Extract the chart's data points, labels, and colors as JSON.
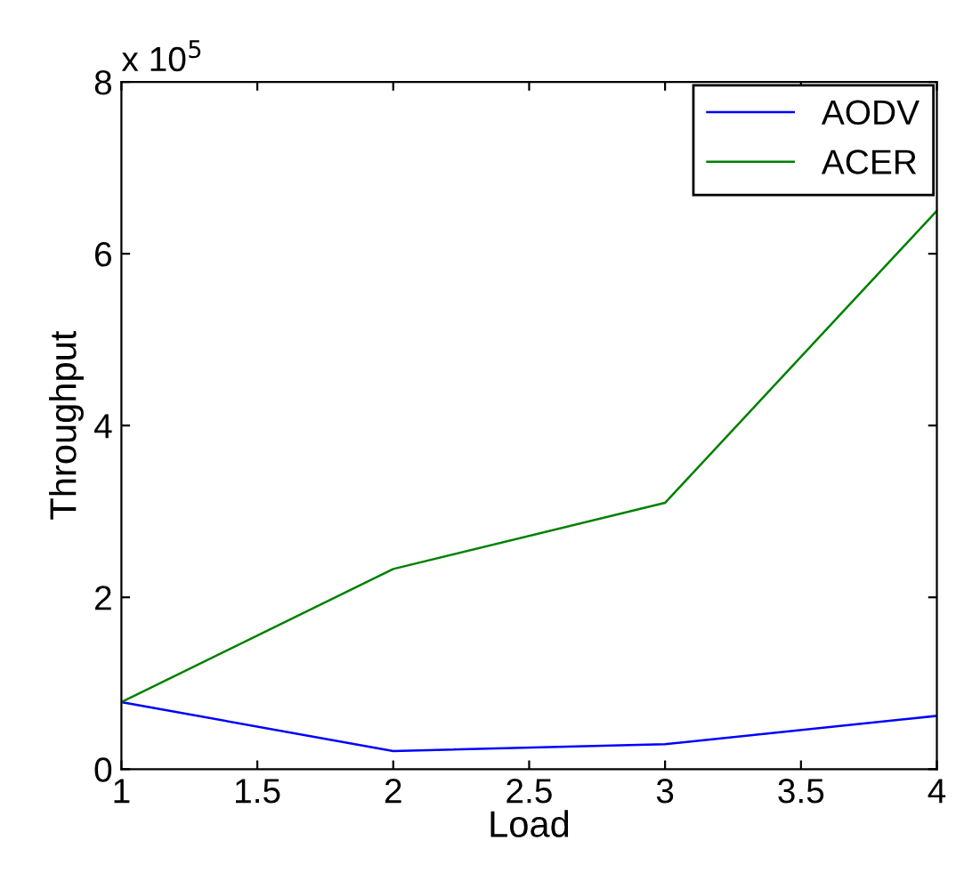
{
  "chart_data": {
    "type": "line",
    "xlabel": "Load",
    "ylabel": "Throughput",
    "x": [
      1,
      2,
      3,
      4
    ],
    "series": [
      {
        "name": "AODV",
        "color": "#0000ff",
        "values": [
          0.78,
          0.21,
          0.29,
          0.62
        ]
      },
      {
        "name": "ACER",
        "color": "#008000",
        "values": [
          0.78,
          2.33,
          3.1,
          6.5
        ]
      }
    ],
    "xlim": [
      1,
      4
    ],
    "xticks": [
      1,
      1.5,
      2,
      2.5,
      3,
      3.5,
      4
    ],
    "ylim": [
      0,
      8
    ],
    "yticks": [
      0,
      2,
      4,
      6,
      8
    ],
    "annotations": [
      "x 10$^{5}$"
    ],
    "grid": false,
    "legend": "top right"
  }
}
